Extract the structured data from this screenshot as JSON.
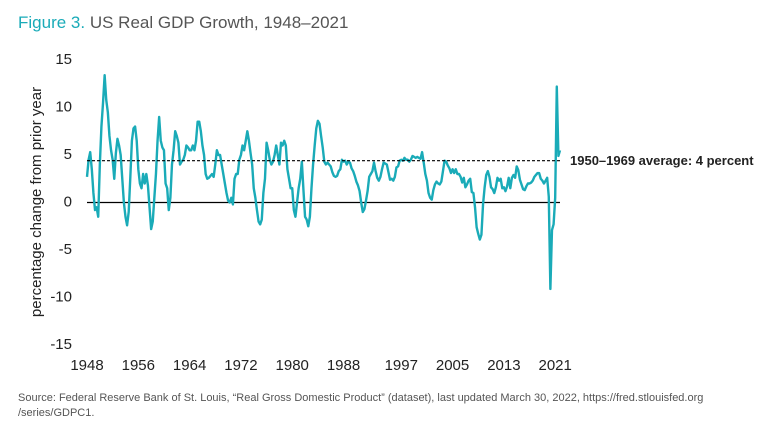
{
  "chart_data": {
    "type": "line",
    "title_prefix": "Figure 3.",
    "title": "US Real GDP Growth, 1948–2021",
    "y_label": "percentage change from prior year",
    "source": [
      "Source: Federal Reserve Bank of St. Louis, “Real Gross Domestic Product” (dataset), last updated March 30, 2022, https://fred.stlouisfed.org",
      "/series/GDPC1."
    ],
    "color": "#1aabb8",
    "average": {
      "value": 4.4,
      "label": "1950–1969 average: 4 percent"
    },
    "xlim": [
      1948,
      2021.75
    ],
    "xticks": [
      1948,
      1956,
      1964,
      1972,
      1980,
      1988,
      1997,
      2005,
      2013,
      2021
    ],
    "ylim": [
      -15,
      15
    ],
    "yticks": [
      -15,
      -10,
      -5,
      0,
      5,
      10,
      15
    ],
    "x": [
      1948,
      1948.25,
      1948.5,
      1948.75,
      1949,
      1949.25,
      1949.5,
      1949.75,
      1950,
      1950.25,
      1950.5,
      1950.75,
      1951,
      1951.25,
      1951.5,
      1951.75,
      1952,
      1952.25,
      1952.5,
      1952.75,
      1953,
      1953.25,
      1953.5,
      1953.75,
      1954,
      1954.25,
      1954.5,
      1954.75,
      1955,
      1955.25,
      1955.5,
      1955.75,
      1956,
      1956.25,
      1956.5,
      1956.75,
      1957,
      1957.25,
      1957.5,
      1957.75,
      1958,
      1958.25,
      1958.5,
      1958.75,
      1959,
      1959.25,
      1959.5,
      1959.75,
      1960,
      1960.25,
      1960.5,
      1960.75,
      1961,
      1961.25,
      1961.5,
      1961.75,
      1962,
      1962.25,
      1962.5,
      1962.75,
      1963,
      1963.25,
      1963.5,
      1963.75,
      1964,
      1964.25,
      1964.5,
      1964.75,
      1965,
      1965.25,
      1965.5,
      1965.75,
      1966,
      1966.25,
      1966.5,
      1966.75,
      1967,
      1967.25,
      1967.5,
      1967.75,
      1968,
      1968.25,
      1968.5,
      1968.75,
      1969,
      1969.25,
      1969.5,
      1969.75,
      1970,
      1970.25,
      1970.5,
      1970.75,
      1971,
      1971.25,
      1971.5,
      1971.75,
      1972,
      1972.25,
      1972.5,
      1972.75,
      1973,
      1973.25,
      1973.5,
      1973.75,
      1974,
      1974.25,
      1974.5,
      1974.75,
      1975,
      1975.25,
      1975.5,
      1975.75,
      1976,
      1976.25,
      1976.5,
      1976.75,
      1977,
      1977.25,
      1977.5,
      1977.75,
      1978,
      1978.25,
      1978.5,
      1978.75,
      1979,
      1979.25,
      1979.5,
      1979.75,
      1980,
      1980.25,
      1980.5,
      1980.75,
      1981,
      1981.25,
      1981.5,
      1981.75,
      1982,
      1982.25,
      1982.5,
      1982.75,
      1983,
      1983.25,
      1983.5,
      1983.75,
      1984,
      1984.25,
      1984.5,
      1984.75,
      1985,
      1985.25,
      1985.5,
      1985.75,
      1986,
      1986.25,
      1986.5,
      1986.75,
      1987,
      1987.25,
      1987.5,
      1987.75,
      1988,
      1988.25,
      1988.5,
      1988.75,
      1989,
      1989.25,
      1989.5,
      1989.75,
      1990,
      1990.25,
      1990.5,
      1990.75,
      1991,
      1991.25,
      1991.5,
      1991.75,
      1992,
      1992.25,
      1992.5,
      1992.75,
      1993,
      1993.25,
      1993.5,
      1993.75,
      1994,
      1994.25,
      1994.5,
      1994.75,
      1995,
      1995.25,
      1995.5,
      1995.75,
      1996,
      1996.25,
      1996.5,
      1996.75,
      1997,
      1997.25,
      1997.5,
      1997.75,
      1998,
      1998.25,
      1998.5,
      1998.75,
      1999,
      1999.25,
      1999.5,
      1999.75,
      2000,
      2000.25,
      2000.5,
      2000.75,
      2001,
      2001.25,
      2001.5,
      2001.75,
      2002,
      2002.25,
      2002.5,
      2002.75,
      2003,
      2003.25,
      2003.5,
      2003.75,
      2004,
      2004.25,
      2004.5,
      2004.75,
      2005,
      2005.25,
      2005.5,
      2005.75,
      2006,
      2006.25,
      2006.5,
      2006.75,
      2007,
      2007.25,
      2007.5,
      2007.75,
      2008,
      2008.25,
      2008.5,
      2008.75,
      2009,
      2009.25,
      2009.5,
      2009.75,
      2010,
      2010.25,
      2010.5,
      2010.75,
      2011,
      2011.25,
      2011.5,
      2011.75,
      2012,
      2012.25,
      2012.5,
      2012.75,
      2013,
      2013.25,
      2013.5,
      2013.75,
      2014,
      2014.25,
      2014.5,
      2014.75,
      2015,
      2015.25,
      2015.5,
      2015.75,
      2016,
      2016.25,
      2016.5,
      2016.75,
      2017,
      2017.25,
      2017.5,
      2017.75,
      2018,
      2018.25,
      2018.5,
      2018.75,
      2019,
      2019.25,
      2019.5,
      2019.75,
      2020,
      2020.25,
      2020.5,
      2020.75,
      2021,
      2021.25,
      2021.5,
      2021.75
    ],
    "values": [
      2.7,
      4.5,
      5.3,
      3.5,
      1.0,
      -0.8,
      -0.5,
      -1.5,
      4.0,
      8.0,
      10.5,
      13.4,
      10.8,
      9.5,
      7.0,
      5.5,
      4.5,
      2.5,
      5.2,
      6.7,
      6.0,
      5.0,
      2.5,
      0.0,
      -1.5,
      -2.4,
      -1.0,
      2.6,
      6.5,
      7.8,
      8.0,
      6.5,
      3.5,
      2.0,
      1.5,
      3.0,
      2.0,
      3.0,
      1.8,
      -0.5,
      -2.8,
      -2.0,
      0.5,
      3.0,
      6.5,
      9.0,
      6.5,
      5.8,
      5.5,
      2.0,
      1.5,
      -0.8,
      0.5,
      4.0,
      5.5,
      7.5,
      7.0,
      6.3,
      4.0,
      4.3,
      4.5,
      5.0,
      6.0,
      5.8,
      5.5,
      5.5,
      6.0,
      5.5,
      6.5,
      8.5,
      8.5,
      7.5,
      6.0,
      5.0,
      3.0,
      2.5,
      2.6,
      2.8,
      3.0,
      2.7,
      4.0,
      5.5,
      5.0,
      5.0,
      4.0,
      3.0,
      2.0,
      1.0,
      0.2,
      0.0,
      0.5,
      -0.2,
      2.5,
      3.0,
      3.0,
      4.5,
      5.0,
      6.0,
      5.5,
      6.5,
      7.5,
      6.5,
      5.2,
      4.0,
      1.5,
      0.5,
      -0.8,
      -2.0,
      -2.3,
      -1.8,
      1.0,
      2.5,
      6.3,
      5.5,
      4.5,
      4.0,
      4.3,
      5.0,
      6.0,
      5.0,
      4.0,
      6.3,
      6.0,
      6.5,
      6.0,
      3.5,
      2.5,
      1.5,
      1.5,
      -0.8,
      -1.5,
      0.0,
      1.5,
      2.5,
      4.3,
      1.3,
      -1.5,
      -1.8,
      -2.5,
      -1.5,
      1.5,
      4.0,
      6.0,
      7.8,
      8.6,
      8.3,
      7.0,
      5.8,
      4.3,
      4.0,
      4.2,
      4.0,
      3.8,
      3.2,
      2.8,
      2.7,
      2.8,
      3.3,
      3.5,
      4.5,
      4.3,
      4.4,
      4.0,
      4.3,
      4.2,
      3.6,
      3.3,
      2.8,
      2.2,
      1.8,
      1.2,
      0.0,
      -1.0,
      -0.7,
      0.2,
      1.2,
      2.7,
      3.0,
      3.3,
      4.2,
      3.3,
      2.6,
      2.3,
      2.7,
      3.5,
      4.2,
      4.1,
      4.0,
      3.2,
      2.4,
      2.5,
      2.3,
      2.7,
      3.7,
      3.8,
      4.4,
      4.5,
      4.4,
      4.7,
      4.5,
      4.5,
      4.3,
      4.5,
      4.9,
      4.8,
      4.7,
      4.8,
      4.7,
      4.6,
      5.3,
      4.2,
      3.0,
      2.3,
      1.0,
      0.5,
      0.3,
      1.3,
      1.9,
      2.2,
      2.0,
      1.9,
      2.2,
      3.3,
      4.4,
      4.3,
      3.9,
      3.6,
      3.1,
      3.5,
      3.1,
      3.5,
      3.0,
      3.0,
      2.7,
      2.1,
      2.6,
      1.6,
      1.9,
      2.3,
      2.5,
      1.1,
      1.0,
      -0.5,
      -2.6,
      -3.3,
      -3.9,
      -3.4,
      -0.2,
      1.6,
      2.9,
      3.3,
      2.7,
      1.6,
      1.4,
      1.0,
      1.6,
      2.6,
      2.3,
      2.5,
      1.5,
      1.6,
      1.2,
      1.7,
      2.6,
      1.5,
      2.6,
      2.9,
      2.6,
      3.8,
      3.4,
      2.4,
      1.9,
      1.4,
      1.3,
      1.7,
      2.0,
      2.0,
      2.1,
      2.3,
      2.7,
      2.9,
      3.1,
      3.1,
      2.5,
      2.3,
      2.0,
      2.3,
      2.6,
      0.6,
      -9.1,
      -2.9,
      -2.3,
      0.5,
      12.2,
      4.9,
      5.5
    ]
  }
}
